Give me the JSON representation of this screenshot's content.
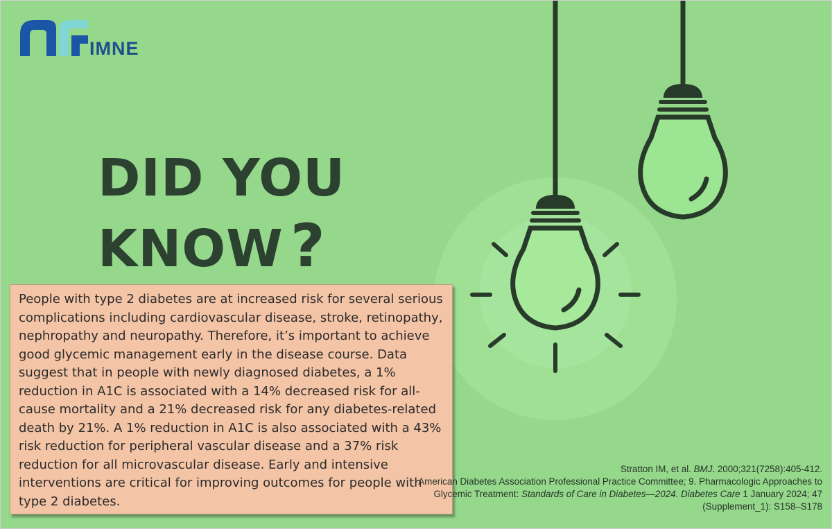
{
  "brand": {
    "name": "IMNE",
    "logo_icon": "imne-logo-icon",
    "colors": {
      "blue": "#1a56a5",
      "teal": "#7fd6d4",
      "text": "#1d4f8e"
    }
  },
  "headline": {
    "line1": "DID YOU",
    "line2": "KNOW",
    "mark": "?"
  },
  "body_text": "People with type 2 diabetes are at increased risk for several serious complications including cardiovascular disease, stroke, retinopathy, nephropathy and neuropathy. Therefore, it’s important to achieve good glycemic management early in the disease course.  Data suggest that in people with newly diagnosed diabetes, a 1% reduction in A1C is associated with a 14% decreased risk for all-cause mortality and a 21% decreased risk for any diabetes-related death by 21%. A 1% reduction in A1C is also associated with a 43% risk reduction for peripheral vascular disease and a 37% risk reduction for all microvascular disease. Early and intensive interventions are critical for improving outcomes for people with type 2 diabetes.",
  "references": {
    "ref1_authors": "Stratton IM, et al. ",
    "ref1_journal": "BMJ",
    "ref1_rest": ". 2000;321(7258):405-412.",
    "ref2_authors": "American Diabetes Association Professional Practice Committee; 9. Pharmacologic Approaches to Glycemic Treatment: ",
    "ref2_title": "Standards of Care in Diabetes—2024. Diabetes Care",
    "ref2_rest": " 1 January 2024; 47 (Supplement_1): S158–S178"
  },
  "colors": {
    "background": "#95d88c",
    "glow": "#a8e89c",
    "ink": "#2c4130",
    "box": "#f4c4a6"
  },
  "illustration": {
    "icons": [
      "hanging-lightbulb-icon",
      "glowing-lightbulb-icon"
    ]
  }
}
